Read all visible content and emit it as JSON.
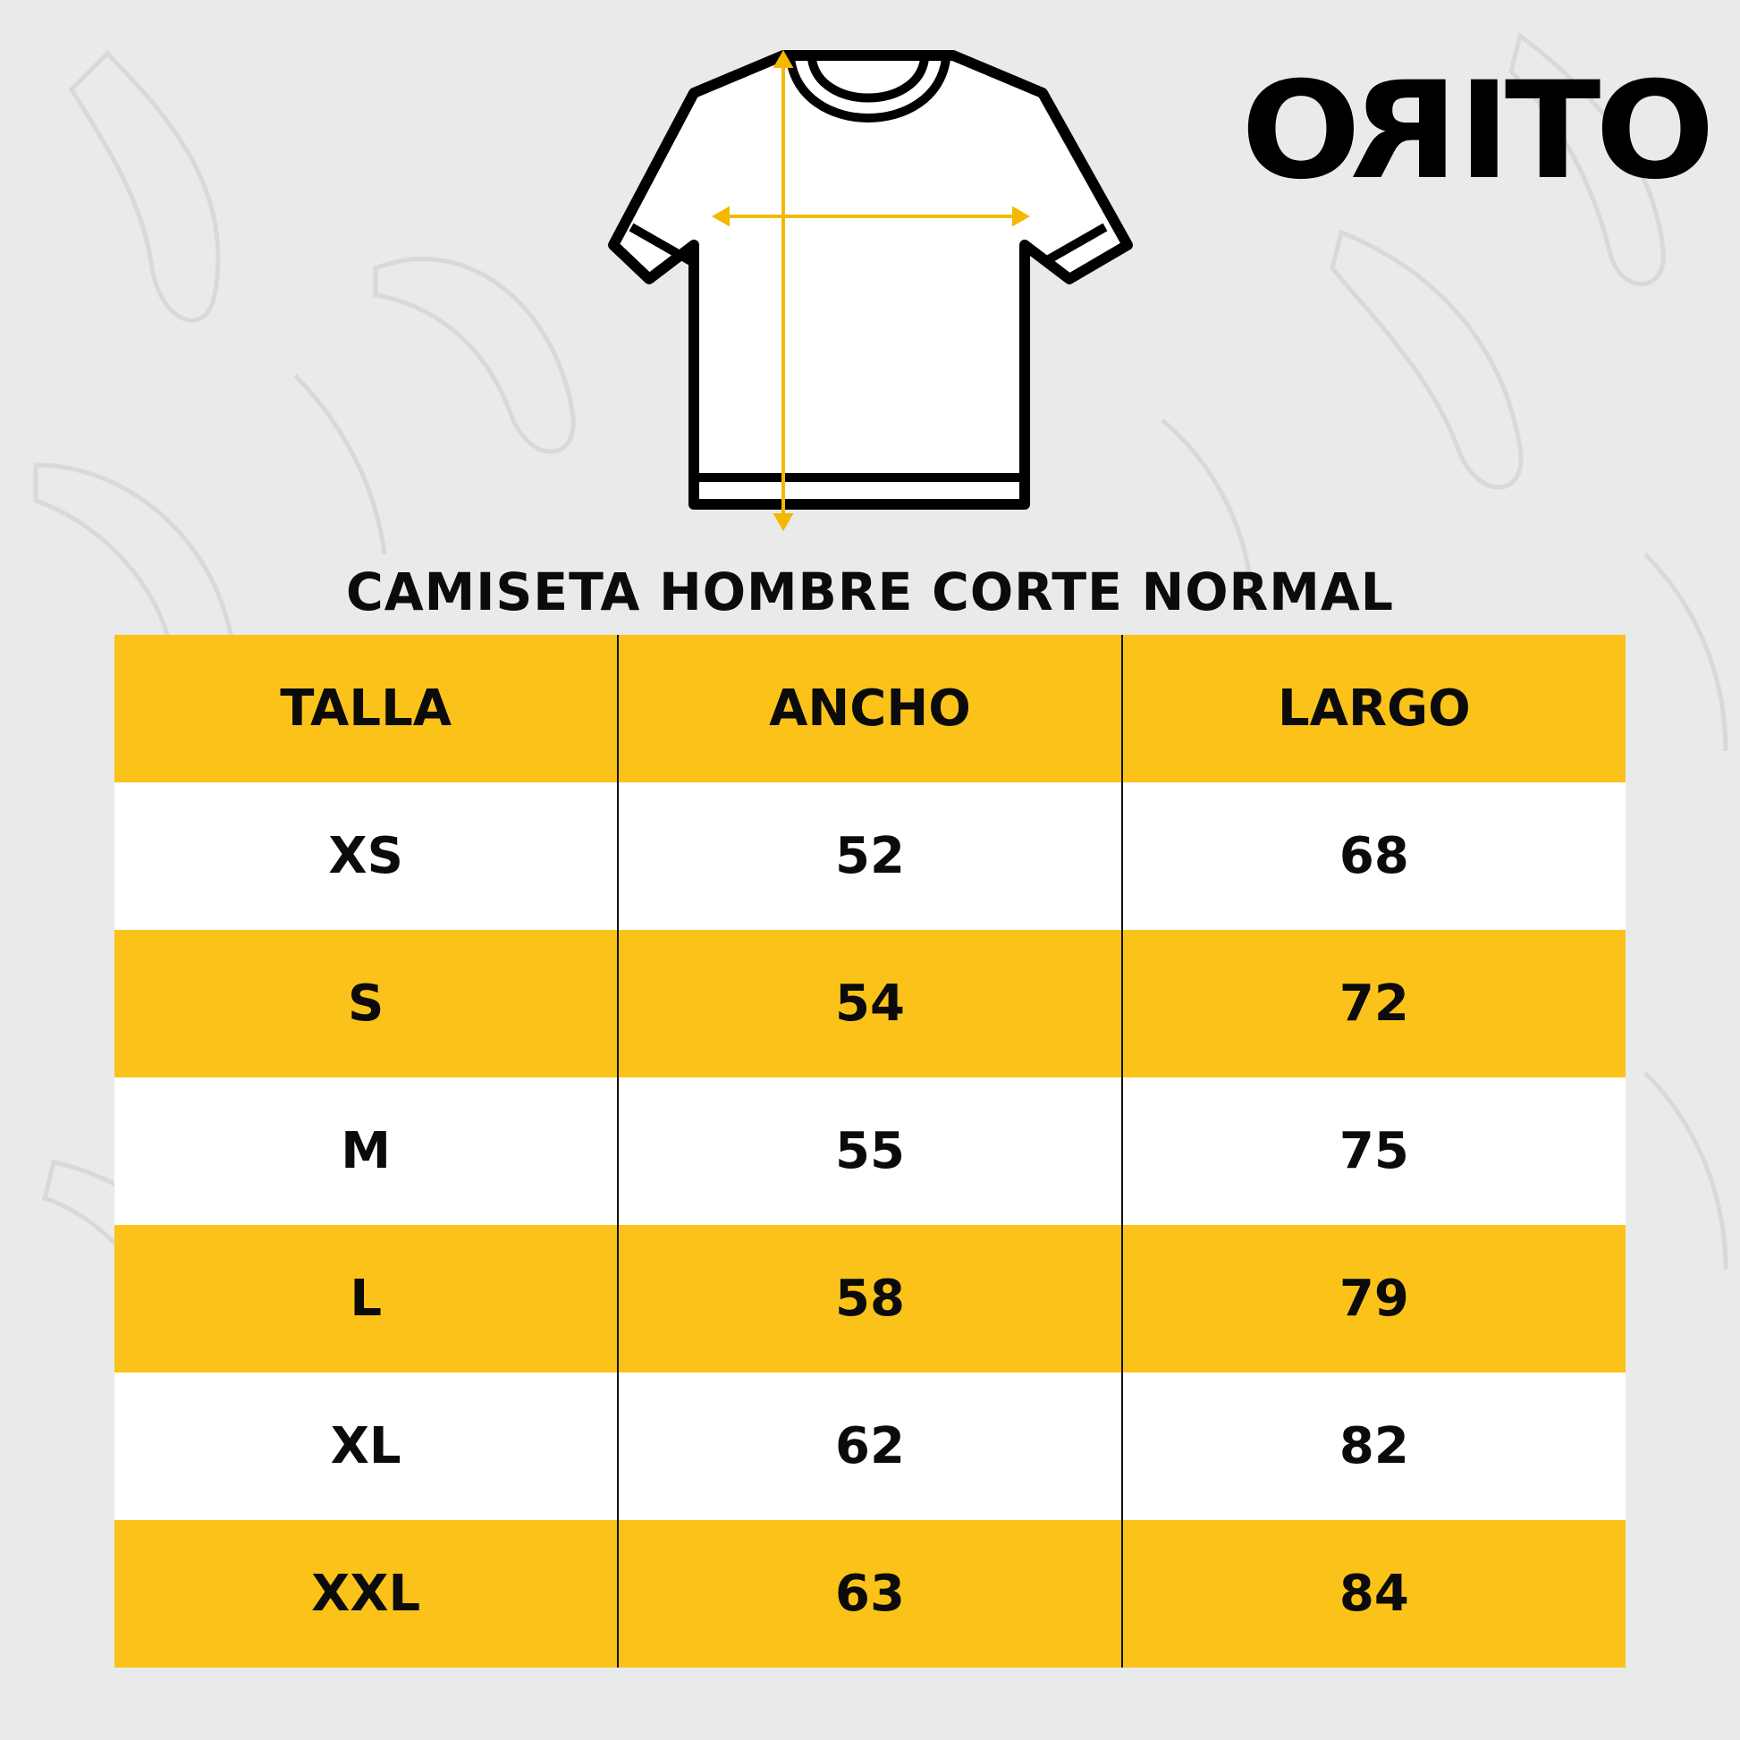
{
  "brand": {
    "logo_text": "ORITO"
  },
  "title": "CAMISETA HOMBRE CORTE NORMAL",
  "colors": {
    "accent": "#fbc31a",
    "background": "#e9eaea",
    "text": "#0b0b0b"
  },
  "diagram": {
    "icon": "t-shirt-measurement-icon",
    "measures": [
      "width-arrow",
      "length-arrow"
    ]
  },
  "table": {
    "headers": [
      "TALLA",
      "ANCHO",
      "LARGO"
    ],
    "rows": [
      [
        "XS",
        "52",
        "68"
      ],
      [
        "S",
        "54",
        "72"
      ],
      [
        "M",
        "55",
        "75"
      ],
      [
        "L",
        "58",
        "79"
      ],
      [
        "XL",
        "62",
        "82"
      ],
      [
        "XXL",
        "63",
        "84"
      ]
    ]
  }
}
